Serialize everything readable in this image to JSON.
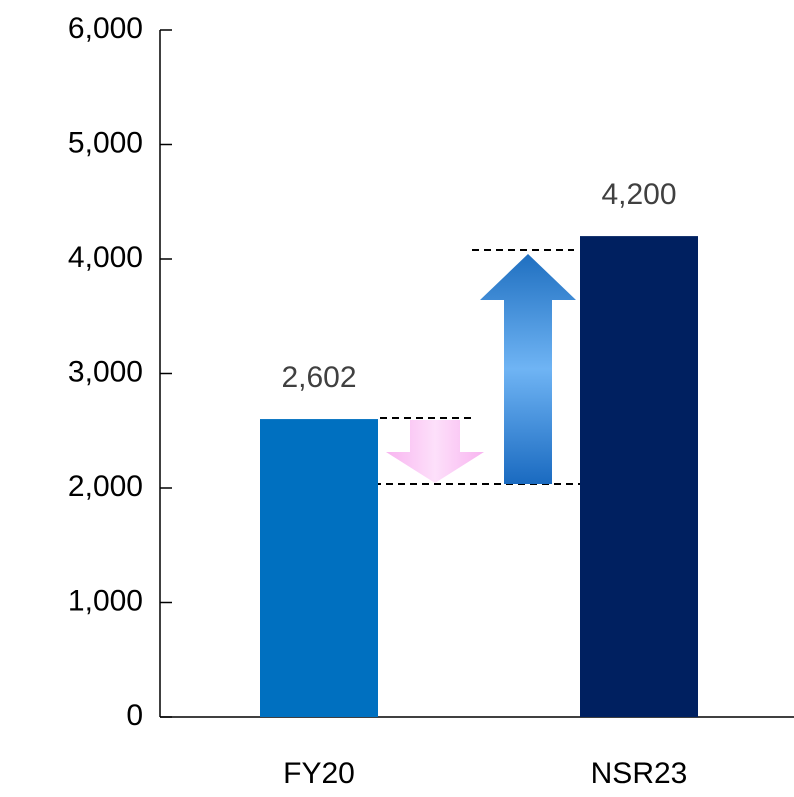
{
  "chart_data": {
    "type": "bar",
    "categories": [
      "FY20",
      "NSR23"
    ],
    "values": [
      2602,
      4200
    ],
    "value_labels": [
      "2,602",
      "4,200"
    ],
    "colors": [
      "#0070c0",
      "#002060"
    ],
    "ylim": [
      0,
      6000
    ],
    "yticks": [
      0,
      {
        "value": 1000,
        "label": "1,000"
      },
      {
        "value": 2000,
        "label": "2,000"
      },
      {
        "value": 3000,
        "label": "3,000"
      },
      {
        "value": 4000,
        "label": "4,000"
      },
      {
        "value": 5000,
        "label": "5,000"
      },
      {
        "value": 6000,
        "label": "6,000"
      }
    ],
    "grid": false
  }
}
